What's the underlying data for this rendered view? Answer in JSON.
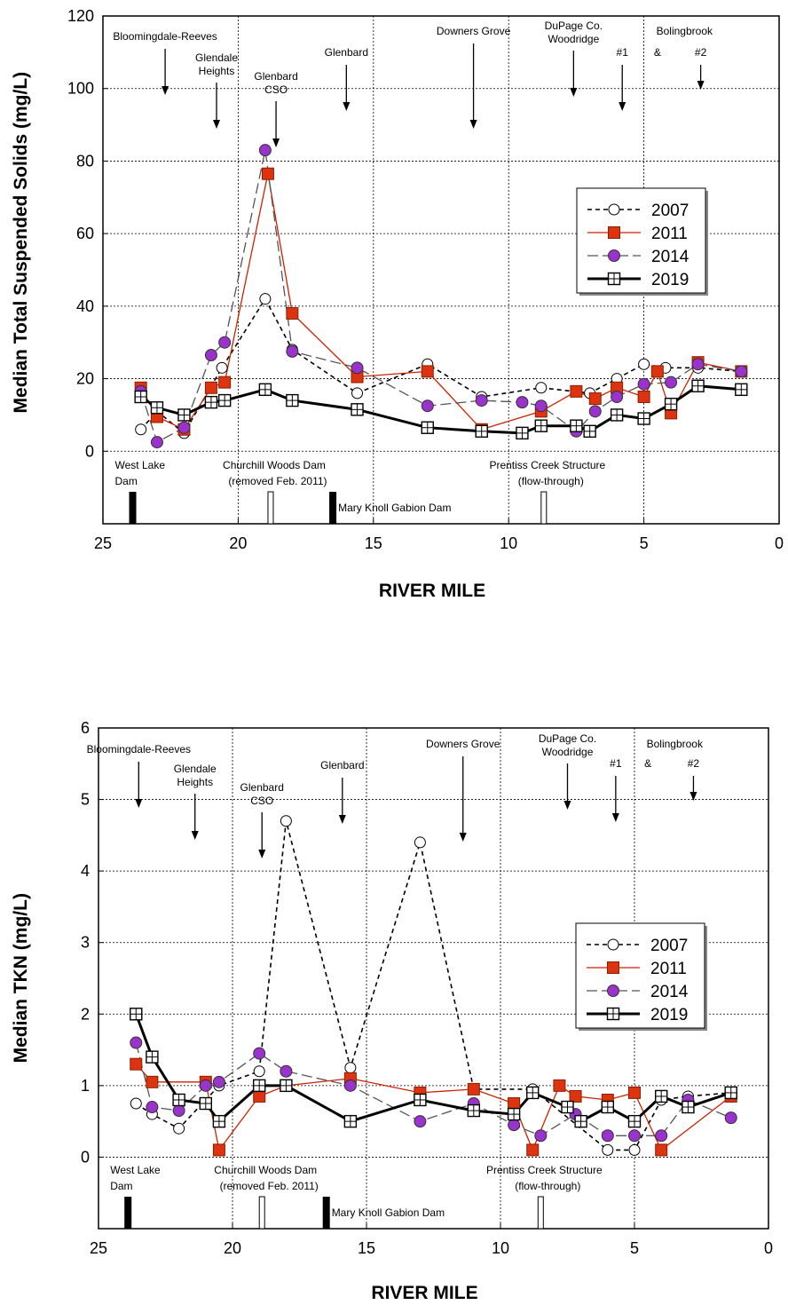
{
  "chart_data": [
    {
      "type": "line",
      "ylabel": "Median Total Suspended Solids (mg/L)",
      "xlabel": "RIVER MILE",
      "xlim": [
        25,
        0
      ],
      "ylim": [
        -20,
        120
      ],
      "x_ticks": [
        "25",
        "20",
        "15",
        "10",
        "5",
        "0"
      ],
      "y_ticks": [
        "0",
        "20",
        "40",
        "60",
        "80",
        "100",
        "120"
      ],
      "grid": "dashed",
      "legend_position": "right",
      "series": [
        {
          "name": "2007",
          "x": [
            23.6,
            23.0,
            22.0,
            20.6,
            19.0,
            18.0,
            15.6,
            13.0,
            11.0,
            8.8,
            7.0,
            6.0,
            5.0,
            4.2,
            3.0,
            1.4
          ],
          "values": [
            6,
            11,
            5,
            23,
            42,
            28,
            16,
            24,
            15,
            17.5,
            16,
            20,
            24,
            23,
            23,
            22
          ]
        },
        {
          "name": "2011",
          "x": [
            23.6,
            23.0,
            22.0,
            21.0,
            20.5,
            18.9,
            18.0,
            15.6,
            13.0,
            11.0,
            8.8,
            7.5,
            6.8,
            6.0,
            5.0,
            4.5,
            4.0,
            3.0,
            1.4
          ],
          "values": [
            17.5,
            9.5,
            6,
            17.5,
            19,
            76.5,
            38,
            20.5,
            22,
            6,
            11,
            16.5,
            14.5,
            17.5,
            15,
            22,
            10.5,
            24.5,
            22
          ]
        },
        {
          "name": "2014",
          "x": [
            23.6,
            23.0,
            22.0,
            21.0,
            20.5,
            19.0,
            18.0,
            15.6,
            13.0,
            11.0,
            9.5,
            8.8,
            7.5,
            6.8,
            6.0,
            5.0,
            4.0,
            3.0,
            1.4
          ],
          "values": [
            16.5,
            2.5,
            6.5,
            26.5,
            30,
            83,
            27.5,
            23,
            12.5,
            14,
            13.5,
            12.5,
            5.5,
            11,
            15,
            18.5,
            19,
            24,
            22
          ]
        },
        {
          "name": "2019",
          "x": [
            23.6,
            23.0,
            22.0,
            21.0,
            20.5,
            19.0,
            18.0,
            15.6,
            13.0,
            11.0,
            9.5,
            8.8,
            7.5,
            7.0,
            6.0,
            5.0,
            4.0,
            3.0,
            1.4
          ],
          "values": [
            15,
            12,
            10,
            13.5,
            14,
            17,
            14,
            11.5,
            6.5,
            5.5,
            5,
            7,
            7,
            5.5,
            10,
            9,
            13,
            18,
            17
          ]
        }
      ],
      "annotations": [
        {
          "label": "Bloomingdale-Reeves",
          "at": 22.7
        },
        {
          "label": "Glendale",
          "label2": "Heights",
          "at": 20.8
        },
        {
          "label": "Glenbard",
          "label2": "CSO",
          "at": 18.6
        },
        {
          "label": "Glenbard",
          "at": 16.0
        },
        {
          "label": "Downers Grove",
          "at": 11.3
        },
        {
          "label": "DuPage Co.",
          "label2": "Woodridge",
          "at": 7.6
        },
        {
          "label": "Bolingbrook",
          "at": 3.5
        },
        {
          "label": "#1",
          "at": 5.8
        },
        {
          "label": "&",
          "at": 4.5
        },
        {
          "label": "#2",
          "at": 2.9
        }
      ],
      "dams": [
        {
          "label": "West Lake",
          "label2": "Dam",
          "mile": 23.9,
          "style": "solid"
        },
        {
          "label": "Churchill Woods Dam",
          "label2": "(removed Feb. 2011)",
          "mile": 18.8,
          "style": "open"
        },
        {
          "label": "Mary Knoll Gabion Dam",
          "mile": 16.5,
          "style": "solid"
        },
        {
          "label": "Prentiss Creek Structure",
          "label2": "(flow-through)",
          "mile": 8.7,
          "style": "open"
        }
      ]
    },
    {
      "type": "line",
      "ylabel": "Median TKN (mg/L)",
      "xlabel": "RIVER MILE",
      "xlim": [
        25,
        0
      ],
      "ylim": [
        -1,
        6
      ],
      "x_ticks": [
        "25",
        "20",
        "15",
        "10",
        "5",
        "0"
      ],
      "y_ticks": [
        "0",
        "1",
        "2",
        "3",
        "4",
        "5",
        "6"
      ],
      "grid": "dashed",
      "legend_position": "right",
      "series": [
        {
          "name": "2007",
          "x": [
            23.6,
            23.0,
            22.0,
            20.5,
            19.0,
            18.0,
            15.6,
            13.0,
            11.0,
            8.8,
            6.0,
            5.0,
            4.0,
            3.0,
            1.4
          ],
          "values": [
            0.75,
            0.6,
            0.4,
            1.0,
            1.2,
            4.7,
            1.25,
            4.4,
            0.95,
            0.95,
            0.1,
            0.1,
            0.8,
            0.85,
            0.9
          ]
        },
        {
          "name": "2011",
          "x": [
            23.6,
            23.0,
            21.0,
            20.5,
            19.0,
            18.0,
            15.6,
            13.0,
            11.0,
            9.5,
            8.8,
            7.8,
            7.2,
            6.0,
            5.0,
            4.0,
            1.4
          ],
          "values": [
            1.3,
            1.05,
            1.05,
            0.1,
            0.85,
            1.0,
            1.1,
            0.9,
            0.95,
            0.75,
            0.1,
            1.0,
            0.85,
            0.8,
            0.9,
            0.1,
            0.85
          ]
        },
        {
          "name": "2014",
          "x": [
            23.6,
            23.0,
            22.0,
            21.0,
            20.5,
            19.0,
            18.0,
            15.6,
            13.0,
            11.0,
            9.5,
            8.5,
            7.2,
            6.0,
            5.0,
            4.0,
            3.0,
            1.4
          ],
          "values": [
            1.6,
            0.7,
            0.65,
            1.0,
            1.05,
            1.45,
            1.2,
            1.0,
            0.5,
            0.75,
            0.45,
            0.3,
            0.6,
            0.3,
            0.3,
            0.3,
            0.8,
            0.55
          ]
        },
        {
          "name": "2019",
          "x": [
            23.6,
            23.0,
            22.0,
            21.0,
            20.5,
            19.0,
            18.0,
            15.6,
            13.0,
            11.0,
            9.5,
            8.8,
            7.5,
            7.0,
            6.0,
            5.0,
            4.0,
            3.0,
            1.4
          ],
          "values": [
            2.0,
            1.4,
            0.8,
            0.75,
            0.5,
            1.0,
            1.0,
            0.5,
            0.8,
            0.65,
            0.6,
            0.9,
            0.7,
            0.5,
            0.7,
            0.5,
            0.85,
            0.7,
            0.9
          ]
        }
      ],
      "annotations": [
        {
          "label": "Bloomingdale-Reeves",
          "at": 23.5
        },
        {
          "label": "Glendale",
          "label2": "Heights",
          "at": 21.4
        },
        {
          "label": "Glenbard",
          "label2": "CSO",
          "at": 18.9
        },
        {
          "label": "Glenbard",
          "at": 15.9
        },
        {
          "label": "Downers Grove",
          "at": 11.4
        },
        {
          "label": "DuPage Co.",
          "label2": "Woodridge",
          "at": 7.5
        },
        {
          "label": "Bolingbrook",
          "at": 3.5
        },
        {
          "label": "#1",
          "at": 5.7
        },
        {
          "label": "&",
          "at": 4.5
        },
        {
          "label": "#2",
          "at": 2.8
        }
      ],
      "dams": [
        {
          "label": "West Lake",
          "label2": "Dam",
          "mile": 23.9,
          "style": "solid"
        },
        {
          "label": "Churchill Woods Dam",
          "label2": "(removed Feb. 2011)",
          "mile": 18.9,
          "style": "open"
        },
        {
          "label": "Mary Knoll Gabion Dam",
          "mile": 16.5,
          "style": "solid"
        },
        {
          "label": "Prentiss Creek Structure",
          "label2": "(flow-through)",
          "mile": 8.5,
          "style": "open"
        }
      ]
    }
  ],
  "legend_style": {
    "2007": {
      "color": "#000000",
      "marker": "open-circle",
      "line": "dashed"
    },
    "2011": {
      "color": "#cc2200",
      "marker": "filled-square",
      "line": "thin-solid"
    },
    "2014": {
      "color": "#555555",
      "marker": "purple-circle",
      "marker_color": "#9933cc",
      "line": "long-dash"
    },
    "2019": {
      "color": "#000000",
      "marker": "grid-square",
      "line": "thick-solid"
    }
  }
}
